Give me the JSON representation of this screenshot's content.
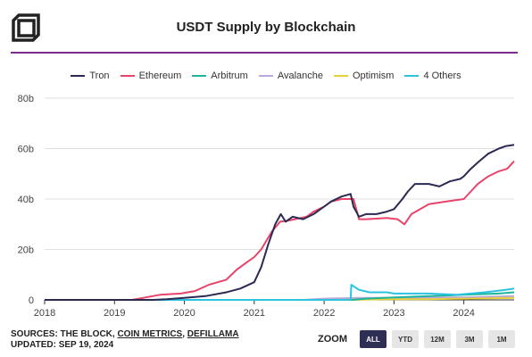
{
  "header": {
    "title": "USDT Supply by Blockchain"
  },
  "colors": {
    "divider": "#7b2b8f",
    "Tron": "#2b2a52",
    "Ethereum": "#e8436a",
    "Arbitrum": "#1fb59b",
    "Avalanche": "#b8a9d9",
    "Optimism": "#e8cf3a",
    "4 Others": "#2cc3e0"
  },
  "footer": {
    "sources_prefix": "SOURCES: THE BLOCK, ",
    "sources_link1": "COIN METRICS",
    "sources_sep": ", ",
    "sources_link2": "DEFILLAMA",
    "updated": "UPDATED: SEP 19, 2024"
  },
  "zoom": {
    "label": "ZOOM",
    "buttons": [
      {
        "label": "ALL",
        "active": true
      },
      {
        "label": "YTD",
        "active": false
      },
      {
        "label": "12M",
        "active": false
      },
      {
        "label": "3M",
        "active": false
      },
      {
        "label": "1M",
        "active": false
      }
    ]
  },
  "chart_data": {
    "type": "line",
    "title": "USDT Supply by Blockchain",
    "xlabel": "",
    "ylabel": "",
    "xlim": [
      2018.0,
      2024.72
    ],
    "ylim": [
      0,
      80
    ],
    "x_ticks": [
      {
        "value": 2018,
        "label": "2018"
      },
      {
        "value": 2019,
        "label": "2019"
      },
      {
        "value": 2020,
        "label": "2020"
      },
      {
        "value": 2021,
        "label": "2021"
      },
      {
        "value": 2022,
        "label": "2022"
      },
      {
        "value": 2023,
        "label": "2023"
      },
      {
        "value": 2024,
        "label": "2024"
      }
    ],
    "y_ticks": [
      {
        "value": 0,
        "label": "0"
      },
      {
        "value": 20,
        "label": "20b"
      },
      {
        "value": 40,
        "label": "40b"
      },
      {
        "value": 60,
        "label": "60b"
      },
      {
        "value": 80,
        "label": "80b"
      }
    ],
    "grid": true,
    "legend_position": "top-center",
    "series": [
      {
        "name": "Tron",
        "points": [
          [
            2018.0,
            0
          ],
          [
            2019.55,
            0
          ],
          [
            2019.75,
            0.3
          ],
          [
            2020.0,
            0.8
          ],
          [
            2020.3,
            1.5
          ],
          [
            2020.6,
            3
          ],
          [
            2020.8,
            4.5
          ],
          [
            2021.0,
            7
          ],
          [
            2021.1,
            13
          ],
          [
            2021.2,
            22
          ],
          [
            2021.3,
            30
          ],
          [
            2021.38,
            34
          ],
          [
            2021.45,
            31
          ],
          [
            2021.55,
            33
          ],
          [
            2021.7,
            32
          ],
          [
            2021.85,
            34
          ],
          [
            2022.0,
            37
          ],
          [
            2022.1,
            39
          ],
          [
            2022.25,
            41
          ],
          [
            2022.38,
            42
          ],
          [
            2022.42,
            37
          ],
          [
            2022.5,
            33
          ],
          [
            2022.6,
            34
          ],
          [
            2022.75,
            34
          ],
          [
            2022.9,
            35
          ],
          [
            2023.0,
            36
          ],
          [
            2023.12,
            40
          ],
          [
            2023.2,
            43
          ],
          [
            2023.3,
            46
          ],
          [
            2023.5,
            46
          ],
          [
            2023.65,
            45
          ],
          [
            2023.8,
            47
          ],
          [
            2023.95,
            48
          ],
          [
            2024.0,
            49
          ],
          [
            2024.1,
            52
          ],
          [
            2024.22,
            55
          ],
          [
            2024.35,
            58
          ],
          [
            2024.5,
            60
          ],
          [
            2024.6,
            61
          ],
          [
            2024.72,
            61.5
          ]
        ]
      },
      {
        "name": "Ethereum",
        "points": [
          [
            2018.0,
            0
          ],
          [
            2019.25,
            0
          ],
          [
            2019.45,
            1
          ],
          [
            2019.65,
            2
          ],
          [
            2019.95,
            2.5
          ],
          [
            2020.15,
            3.5
          ],
          [
            2020.35,
            6
          ],
          [
            2020.6,
            8
          ],
          [
            2020.75,
            12
          ],
          [
            2020.9,
            15
          ],
          [
            2021.0,
            17
          ],
          [
            2021.1,
            20
          ],
          [
            2021.25,
            27
          ],
          [
            2021.37,
            31
          ],
          [
            2021.5,
            31.5
          ],
          [
            2021.75,
            33
          ],
          [
            2021.85,
            35
          ],
          [
            2022.0,
            37
          ],
          [
            2022.1,
            39
          ],
          [
            2022.25,
            40
          ],
          [
            2022.42,
            40
          ],
          [
            2022.5,
            32
          ],
          [
            2022.6,
            32
          ],
          [
            2022.9,
            32.5
          ],
          [
            2023.05,
            32
          ],
          [
            2023.15,
            30
          ],
          [
            2023.25,
            34
          ],
          [
            2023.5,
            38
          ],
          [
            2023.75,
            39
          ],
          [
            2024.0,
            40
          ],
          [
            2024.1,
            43
          ],
          [
            2024.2,
            46
          ],
          [
            2024.35,
            49
          ],
          [
            2024.5,
            51
          ],
          [
            2024.62,
            52
          ],
          [
            2024.72,
            55
          ]
        ]
      },
      {
        "name": "Arbitrum",
        "points": [
          [
            2018.0,
            0
          ],
          [
            2022.4,
            0
          ],
          [
            2022.6,
            0.5
          ],
          [
            2023.0,
            1
          ],
          [
            2023.5,
            1.5
          ],
          [
            2024.0,
            2
          ],
          [
            2024.5,
            2.5
          ],
          [
            2024.72,
            3
          ]
        ]
      },
      {
        "name": "Avalanche",
        "points": [
          [
            2018.0,
            0
          ],
          [
            2021.7,
            0
          ],
          [
            2022.0,
            0.5
          ],
          [
            2022.5,
            0.8
          ],
          [
            2023.0,
            0.8
          ],
          [
            2024.0,
            1
          ],
          [
            2024.72,
            1.5
          ]
        ]
      },
      {
        "name": "Optimism",
        "points": [
          [
            2018.0,
            0
          ],
          [
            2022.4,
            0
          ],
          [
            2022.8,
            0.2
          ],
          [
            2023.5,
            0.3
          ],
          [
            2024.0,
            0.5
          ],
          [
            2024.72,
            0.8
          ]
        ]
      },
      {
        "name": "4 Others",
        "points": [
          [
            2018.0,
            0
          ],
          [
            2022.38,
            0
          ],
          [
            2022.39,
            6
          ],
          [
            2022.5,
            4
          ],
          [
            2022.65,
            3
          ],
          [
            2022.9,
            3
          ],
          [
            2023.0,
            2.5
          ],
          [
            2023.5,
            2.5
          ],
          [
            2023.9,
            2
          ],
          [
            2024.3,
            3
          ],
          [
            2024.6,
            4
          ],
          [
            2024.72,
            4.5
          ]
        ]
      }
    ]
  }
}
